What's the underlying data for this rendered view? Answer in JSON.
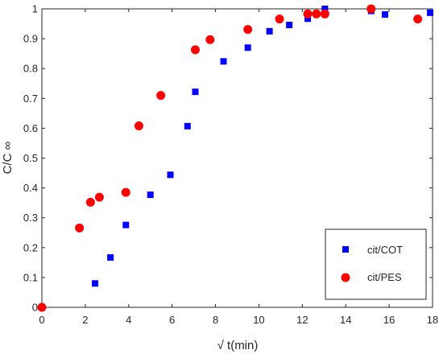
{
  "chart_data": {
    "type": "scatter",
    "xlabel": "√ t(min)",
    "ylabel": "C/C ∞",
    "xlim": [
      0,
      18
    ],
    "ylim": [
      0,
      1
    ],
    "xticks": [
      0,
      2,
      4,
      6,
      8,
      10,
      12,
      14,
      16,
      18
    ],
    "yticks": [
      0,
      0.1,
      0.2,
      0.3,
      0.4,
      0.5,
      0.6,
      0.7,
      0.8,
      0.9,
      1
    ],
    "xtick_labels": [
      "0",
      "2",
      "4",
      "6",
      "8",
      "10",
      "12",
      "14",
      "16",
      "18"
    ],
    "ytick_labels": [
      "0",
      "0.1",
      "0.2",
      "0.3",
      "0.4",
      "0.5",
      "0.6",
      "0.7",
      "0.8",
      "0.9",
      "1"
    ],
    "grid": false,
    "legend_position": "bottom-right",
    "series": [
      {
        "name": "cit/COT",
        "marker": "square",
        "color": "#0000ff",
        "x": [
          0,
          2.45,
          3.16,
          3.87,
          5.0,
          5.92,
          6.71,
          7.07,
          8.37,
          9.49,
          10.49,
          11.4,
          12.25,
          13.04,
          15.17,
          15.81,
          17.89
        ],
        "y": [
          0,
          0.08,
          0.167,
          0.276,
          0.377,
          0.444,
          0.607,
          0.722,
          0.824,
          0.87,
          0.925,
          0.946,
          0.967,
          1.0,
          0.993,
          0.981,
          0.987
        ]
      },
      {
        "name": "cit/PES",
        "marker": "circle",
        "color": "#ff0000",
        "x": [
          0,
          1.73,
          2.24,
          2.65,
          3.87,
          4.47,
          5.48,
          7.07,
          7.75,
          9.49,
          10.95,
          12.25,
          12.65,
          13.04,
          15.17,
          17.32
        ],
        "y": [
          0,
          0.266,
          0.352,
          0.369,
          0.385,
          0.608,
          0.71,
          0.863,
          0.897,
          0.931,
          0.966,
          0.983,
          0.983,
          0.983,
          1.0,
          0.966
        ]
      }
    ]
  }
}
